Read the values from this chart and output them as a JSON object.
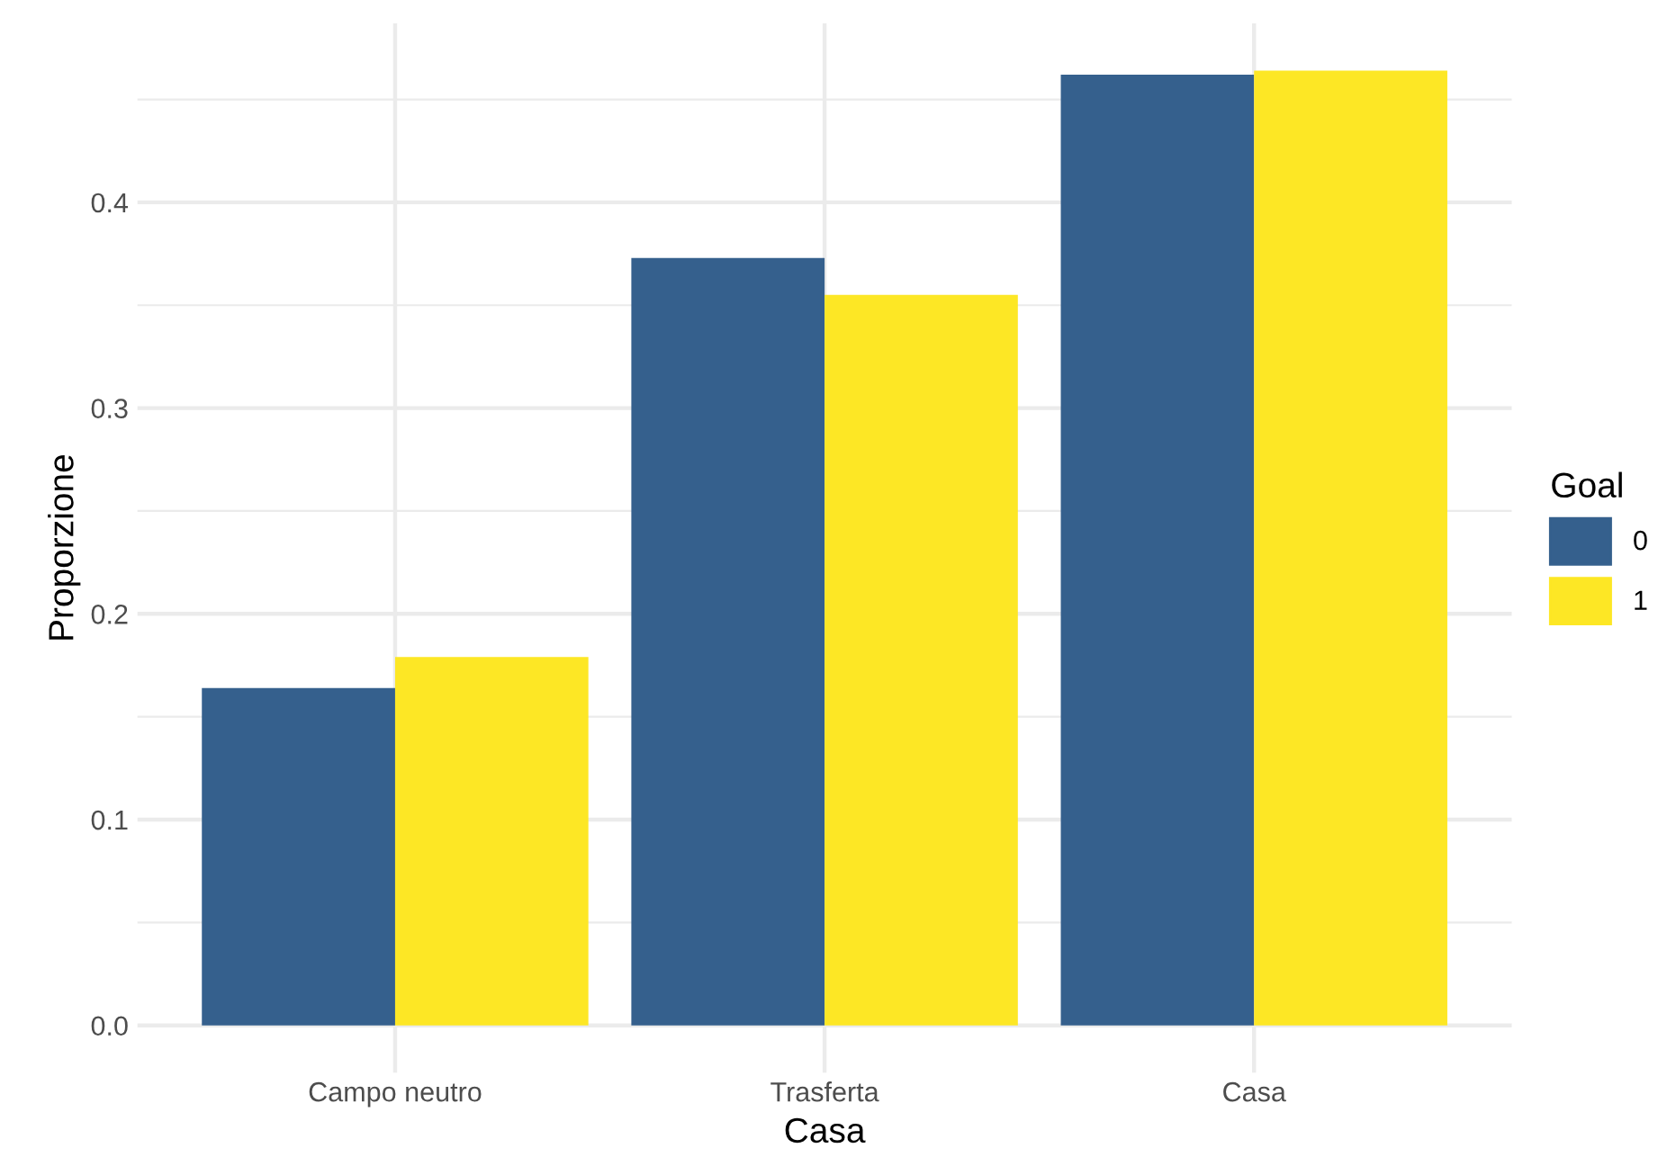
{
  "chart_data": {
    "type": "bar",
    "xlabel": "Casa",
    "ylabel": "Proporzione",
    "legend_title": "Goal",
    "categories": [
      "Campo neutro",
      "Trasferta",
      "Casa"
    ],
    "series": [
      {
        "name": "0",
        "color": "#35608d",
        "values": [
          0.164,
          0.373,
          0.462
        ]
      },
      {
        "name": "1",
        "color": "#fde725",
        "values": [
          0.179,
          0.355,
          0.464
        ]
      }
    ],
    "ylim": [
      -0.023,
      0.487
    ],
    "yticks": [
      {
        "value": 0,
        "label": "0.0"
      },
      {
        "value": 0.05,
        "label": null
      },
      0.1,
      {
        "value": 0.15,
        "label": null
      },
      0.2,
      {
        "value": 0.25,
        "label": null
      },
      0.3,
      {
        "value": 0.35,
        "label": null
      },
      0.4,
      {
        "value": 0.45,
        "label": null
      }
    ],
    "grid": true,
    "legend": "right"
  }
}
